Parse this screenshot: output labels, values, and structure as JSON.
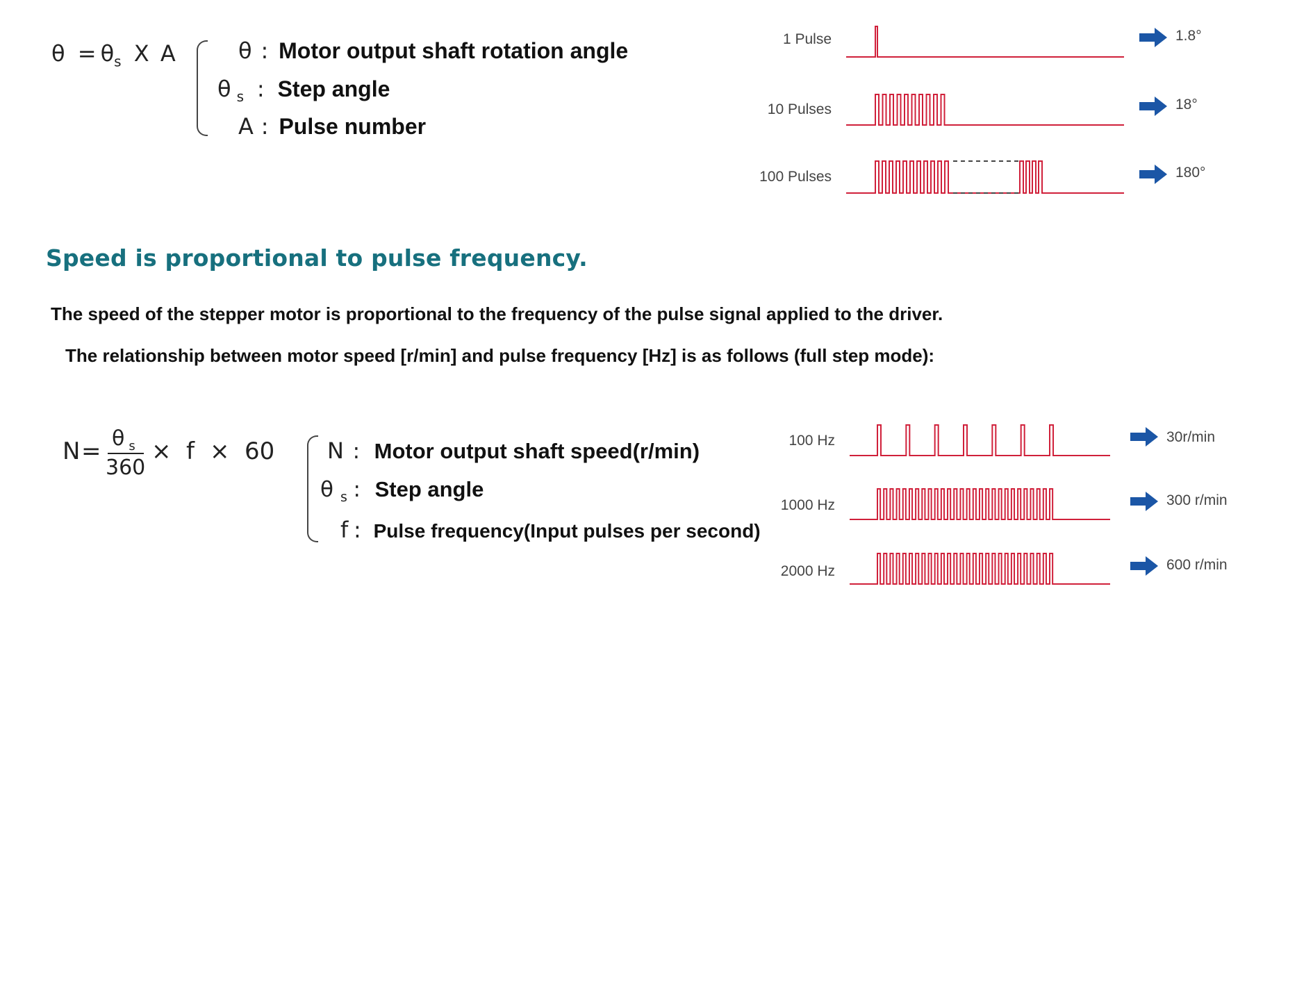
{
  "colors": {
    "wave": "#d0203a",
    "dash": "#444444",
    "arrow": "#1b56a6",
    "heading": "#17707e",
    "text": "#111111"
  },
  "formula1": {
    "theta": "θ",
    "equals": "=",
    "sub_s": "s",
    "times": "X",
    "A": "A",
    "defs": [
      {
        "sym": "θ",
        "sub": "",
        "sep": ":",
        "text": "Motor output shaft rotation angle"
      },
      {
        "sym": "θ",
        "sub": "s",
        "sep": ":",
        "text": "Step angle"
      },
      {
        "sym": "A",
        "sub": "",
        "sep": ":",
        "text": "Pulse number"
      }
    ]
  },
  "pulse_diagram": {
    "rows": [
      {
        "label": "1 Pulse",
        "result": "1.8°",
        "pulses": 1,
        "gap": false
      },
      {
        "label": "10 Pulses",
        "result": "18°",
        "pulses": 10,
        "gap": false
      },
      {
        "label": "100 Pulses",
        "result": "180°",
        "pulses": 100,
        "gap": true
      }
    ]
  },
  "heading": "Speed is proportional to pulse frequency.",
  "paragraph1": "The speed of the stepper motor is proportional to the frequency of the pulse signal applied to the driver.",
  "paragraph2": "The relationship between motor speed [r/min] and pulse frequency [Hz] is as follows (full step mode):",
  "formula2": {
    "N": "N",
    "equals": "=",
    "num": "θ",
    "num_sub": "s",
    "den": "360",
    "times": "×",
    "f": "f",
    "sixty": "60",
    "defs": [
      {
        "sym": "N",
        "sub": "",
        "sep": ":",
        "text": "Motor output shaft speed(r/min)"
      },
      {
        "sym": "θ",
        "sub": "s",
        "sep": ":",
        "text": "Step angle"
      },
      {
        "sym": "f",
        "sub": "",
        "sep": ":",
        "text": "Pulse frequency(Input pulses per second)"
      }
    ]
  },
  "frequency_diagram": {
    "rows": [
      {
        "label": "100 Hz",
        "result": "30r/min",
        "frequency_hz": 100,
        "speed_rpm": 30
      },
      {
        "label": "1000 Hz",
        "result": "300 r/min",
        "frequency_hz": 1000,
        "speed_rpm": 300
      },
      {
        "label": "2000 Hz",
        "result": "600 r/min",
        "frequency_hz": 2000,
        "speed_rpm": 600
      }
    ]
  }
}
